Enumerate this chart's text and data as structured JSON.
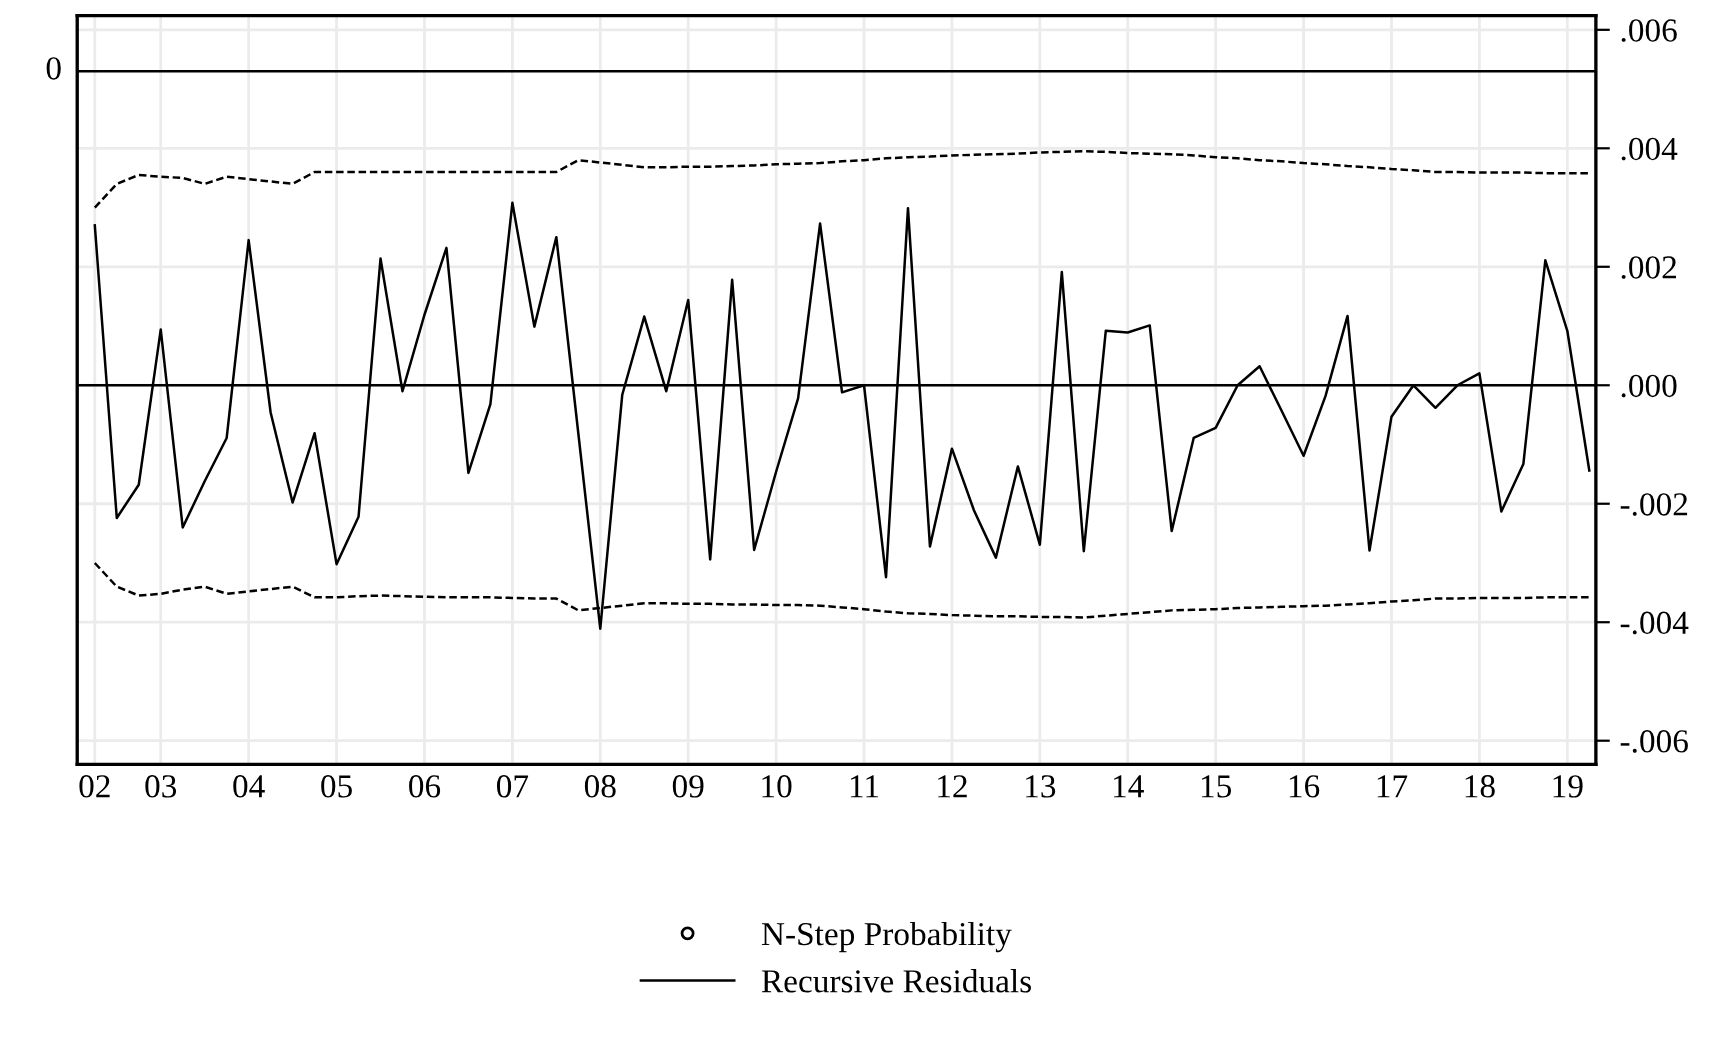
{
  "chart_data": {
    "type": "line",
    "ylim": [
      -0.0064,
      0.00624
    ],
    "categories": [
      "02",
      null,
      null,
      "03",
      null,
      null,
      null,
      "04",
      null,
      null,
      null,
      "05",
      null,
      null,
      null,
      "06",
      null,
      null,
      null,
      "07",
      null,
      null,
      null,
      "08",
      null,
      null,
      null,
      "09",
      null,
      null,
      null,
      "10",
      null,
      null,
      null,
      "11",
      null,
      null,
      null,
      "12",
      null,
      null,
      null,
      "13",
      null,
      null,
      null,
      "14",
      null,
      null,
      null,
      "15",
      null,
      null,
      null,
      "16",
      null,
      null,
      null,
      "17",
      null,
      null,
      null,
      "18",
      null,
      null,
      null,
      "19",
      null
    ],
    "yticks": [
      {
        "value": 0.006,
        "label": ".006"
      },
      {
        "value": 0.004,
        "label": ".004"
      },
      {
        "value": 0.002,
        "label": ".002"
      },
      {
        "value": 0.0,
        "label": ".000"
      },
      {
        "value": -0.002,
        "label": "-.002"
      },
      {
        "value": -0.004,
        "label": "-.004"
      },
      {
        "value": -0.006,
        "label": "-.006"
      }
    ],
    "grid": true,
    "legend": "bottom",
    "ref_lines": [
      {
        "axis": "y",
        "value": 0.0053,
        "label": "0",
        "color": "#000000"
      },
      {
        "axis": "y",
        "value": 0.0,
        "color": "#000000"
      }
    ],
    "series": [
      {
        "name": "N-Step Probability",
        "type": "scatter",
        "marker": "circle",
        "color": "#000000",
        "values": [
          null,
          null,
          null,
          null,
          null,
          null,
          null,
          null,
          null,
          null,
          null,
          null,
          null,
          null,
          null,
          null,
          null,
          null,
          null,
          null,
          null,
          null,
          null,
          null,
          null,
          null,
          null,
          null,
          null,
          null,
          null,
          null,
          null,
          null,
          null,
          null,
          null,
          null,
          null,
          null,
          null,
          null,
          null,
          null,
          null,
          null,
          null,
          null,
          null,
          null,
          null,
          null,
          null,
          null,
          null,
          null,
          null,
          null,
          null,
          null,
          null,
          null,
          null,
          null,
          null,
          null,
          null,
          null,
          null
        ]
      },
      {
        "name": "Recursive Residuals",
        "color": "#000000",
        "line_style": "solid",
        "values": [
          0.0027,
          -0.00224,
          -0.00168,
          0.00094,
          -0.0024,
          -0.00162,
          -0.00089,
          0.00245,
          -0.00046,
          -0.00198,
          -0.00081,
          -0.00302,
          -0.00222,
          0.00214,
          -0.0001,
          0.00119,
          0.00232,
          -0.00148,
          -0.00032,
          0.00308,
          0.00099,
          0.0025,
          -0.00081,
          -0.00411,
          -0.00016,
          0.00116,
          -0.0001,
          0.00144,
          -0.00294,
          0.00178,
          -0.00278,
          -0.00146,
          -0.00022,
          0.00273,
          -0.00012,
          0.0,
          -0.00324,
          0.00299,
          -0.00272,
          -0.00107,
          -0.00211,
          -0.00291,
          -0.00137,
          -0.00269,
          0.00191,
          -0.0028,
          0.00092,
          0.00089,
          0.00101,
          -0.00246,
          -0.00089,
          -0.00072,
          0.0,
          0.00032,
          -0.00043,
          -0.00119,
          -0.00018,
          0.00117,
          -0.00279,
          -0.00053,
          0.0,
          -0.00038,
          0.0,
          0.0002,
          -0.00213,
          -0.00133,
          0.00211,
          0.00092,
          -0.00144
        ]
      },
      {
        "color": "#000000",
        "line_style": "dashed",
        "values": [
          0.003,
          0.0034,
          0.00355,
          0.00352,
          0.0035,
          0.0034,
          0.00352,
          0.00348,
          0.00344,
          0.0034,
          0.0036,
          0.0036,
          0.0036,
          0.0036,
          0.0036,
          0.0036,
          0.0036,
          0.0036,
          0.0036,
          0.0036,
          0.0036,
          0.0036,
          0.0038,
          0.00376,
          0.00372,
          0.00368,
          0.00368,
          0.00369,
          0.00369,
          0.0037,
          0.00371,
          0.00373,
          0.00374,
          0.00375,
          0.00378,
          0.0038,
          0.00383,
          0.00385,
          0.00386,
          0.00388,
          0.00389,
          0.0039,
          0.00391,
          0.00393,
          0.00394,
          0.00395,
          0.00394,
          0.00392,
          0.00391,
          0.0039,
          0.00388,
          0.00385,
          0.00383,
          0.0038,
          0.00378,
          0.00375,
          0.00373,
          0.0037,
          0.00368,
          0.00365,
          0.00363,
          0.0036,
          0.0036,
          0.00359,
          0.00359,
          0.00359,
          0.00358,
          0.00358,
          0.00358
        ]
      },
      {
        "color": "#000000",
        "line_style": "dashed",
        "values": [
          -0.003,
          -0.0034,
          -0.00355,
          -0.00352,
          -0.00345,
          -0.0034,
          -0.00352,
          -0.00348,
          -0.00344,
          -0.0034,
          -0.00358,
          -0.00358,
          -0.00356,
          -0.00355,
          -0.00356,
          -0.00357,
          -0.00358,
          -0.00358,
          -0.00358,
          -0.00359,
          -0.0036,
          -0.0036,
          -0.0038,
          -0.00376,
          -0.00372,
          -0.00368,
          -0.00368,
          -0.00369,
          -0.00369,
          -0.0037,
          -0.0037,
          -0.00371,
          -0.00371,
          -0.00372,
          -0.00375,
          -0.00378,
          -0.00382,
          -0.00385,
          -0.00386,
          -0.00388,
          -0.00389,
          -0.0039,
          -0.0039,
          -0.00391,
          -0.00391,
          -0.00392,
          -0.00389,
          -0.00386,
          -0.00383,
          -0.0038,
          -0.00379,
          -0.00378,
          -0.00376,
          -0.00375,
          -0.00374,
          -0.00373,
          -0.00372,
          -0.0037,
          -0.00368,
          -0.00365,
          -0.00363,
          -0.0036,
          -0.0036,
          -0.00359,
          -0.00359,
          -0.00359,
          -0.00358,
          -0.00358,
          -0.00358
        ]
      }
    ]
  }
}
